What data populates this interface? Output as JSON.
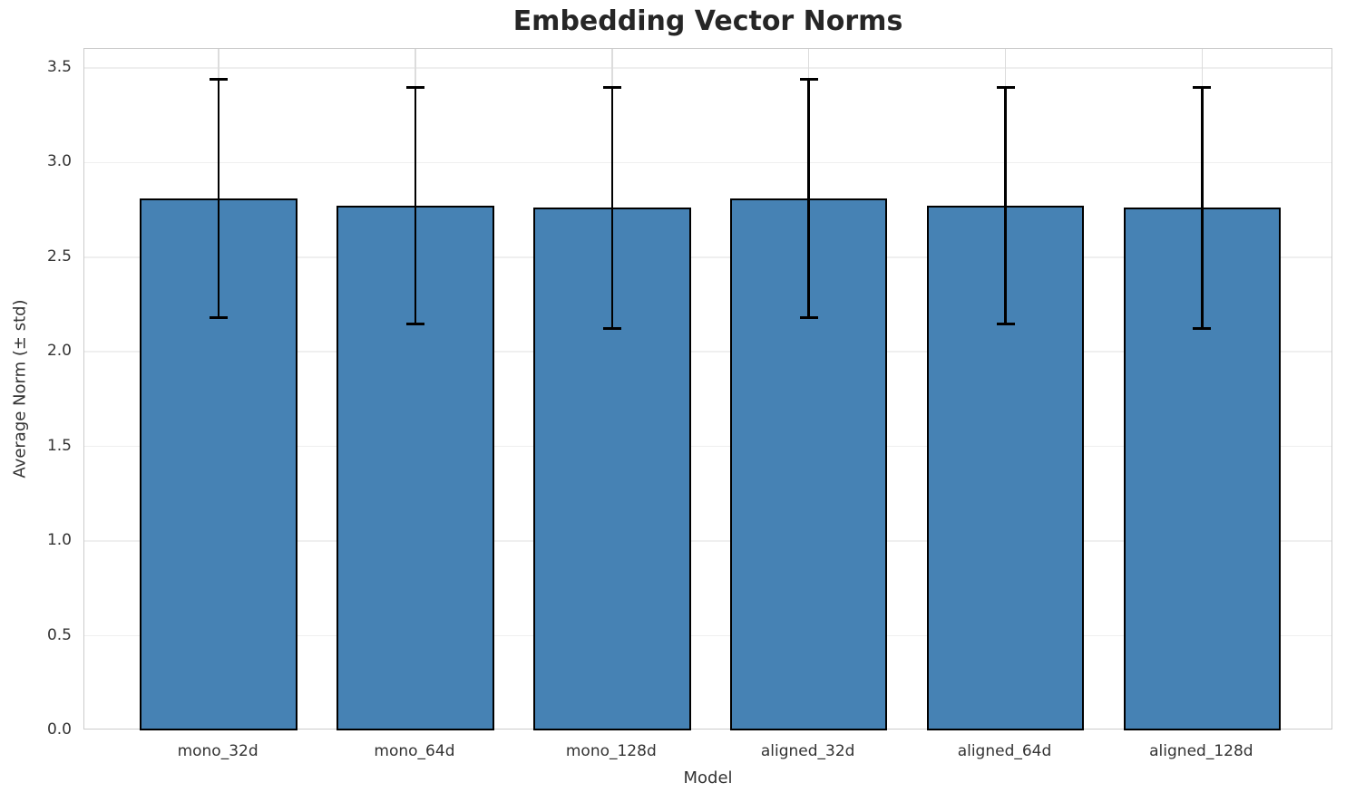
{
  "chart_data": {
    "type": "bar",
    "title": "Embedding Vector Norms",
    "xlabel": "Model",
    "ylabel": "Average Norm (± std)",
    "categories": [
      "mono_32d",
      "mono_64d",
      "mono_128d",
      "aligned_32d",
      "aligned_64d",
      "aligned_128d"
    ],
    "values": [
      2.81,
      2.77,
      2.76,
      2.81,
      2.77,
      2.76
    ],
    "std": [
      0.63,
      0.625,
      0.635,
      0.63,
      0.625,
      0.635
    ],
    "error_low": [
      2.18,
      2.145,
      2.125,
      2.18,
      2.145,
      2.125
    ],
    "error_high": [
      3.44,
      3.395,
      3.395,
      3.44,
      3.395,
      3.395
    ],
    "ylim": [
      0,
      3.6
    ],
    "ytick_labels": [
      "0.0",
      "0.5",
      "1.0",
      "1.5",
      "2.0",
      "2.5",
      "3.0",
      "3.5"
    ],
    "grid": true,
    "legend": "none",
    "colors": {
      "bar_fill": "#4682b4",
      "bar_edge": "#000000",
      "error_bar": "#000000",
      "grid_horizontal": "#efefef",
      "grid_vertical": "#dcdcdc",
      "spine": "#cccccc",
      "title_text": "#262626",
      "tick_text": "#333333"
    }
  }
}
